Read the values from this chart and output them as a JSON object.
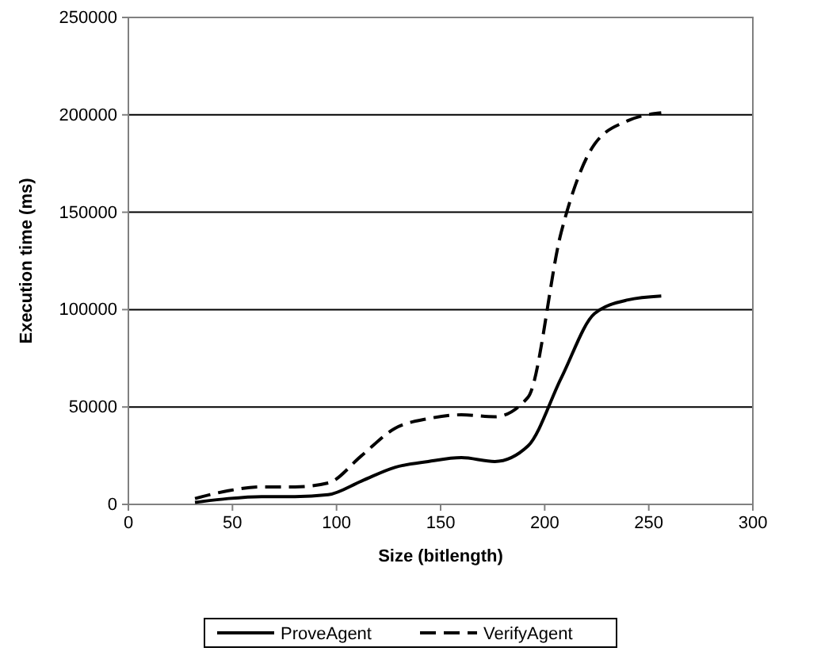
{
  "chart_data": {
    "type": "line",
    "xlabel": "Size (bitlength)",
    "ylabel": "Execution time (ms)",
    "x": [
      32,
      48,
      64,
      80,
      96,
      112,
      128,
      144,
      160,
      176,
      192,
      208,
      224,
      240,
      256
    ],
    "series": [
      {
        "name": "ProveAgent",
        "color": "#000000",
        "line_style": "solid",
        "values": [
          1000,
          3000,
          4000,
          4000,
          5000,
          12000,
          19000,
          22000,
          24000,
          22000,
          30000,
          65000,
          98000,
          105000,
          107000
        ]
      },
      {
        "name": "VerifyAgent",
        "color": "#000000",
        "line_style": "dashed",
        "values": [
          3000,
          7000,
          9000,
          9000,
          11000,
          25000,
          39000,
          44000,
          46000,
          45000,
          55000,
          140000,
          185000,
          197000,
          201000
        ]
      }
    ],
    "xlim": [
      0,
      300
    ],
    "xticks": [
      0,
      50,
      100,
      150,
      200,
      250,
      300
    ],
    "ylim": [
      0,
      250000
    ],
    "yticks": [
      0,
      50000,
      100000,
      150000,
      200000,
      250000
    ],
    "grid": "y",
    "legend": "bottom",
    "marker": "none"
  }
}
